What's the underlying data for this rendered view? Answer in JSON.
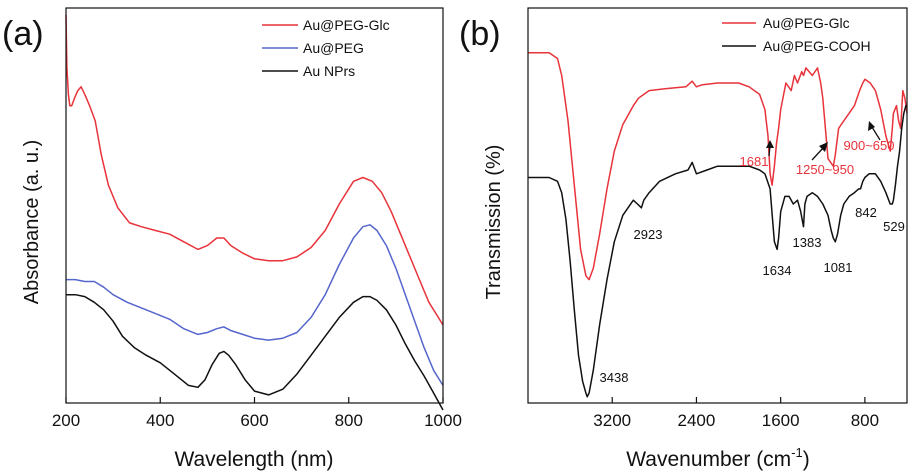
{
  "chart_data": [
    {
      "type": "line",
      "panel_label": "(a)",
      "xlabel": "Wavelength (nm)",
      "ylabel": "Absorbance (a. u.)",
      "xlim": [
        200,
        1000
      ],
      "ylim": [
        0,
        1
      ],
      "xticks": [
        200,
        400,
        600,
        800,
        1000
      ],
      "yticks_shown": false,
      "grid": false,
      "legend": "top-right",
      "series": [
        {
          "name": "Au@PEG-Glc",
          "color": "#e8333a",
          "x": [
            200,
            202,
            205,
            208,
            212,
            218,
            225,
            232,
            240,
            250,
            262,
            275,
            290,
            310,
            335,
            360,
            390,
            420,
            450,
            480,
            500,
            520,
            535,
            550,
            575,
            600,
            630,
            660,
            690,
            720,
            750,
            780,
            810,
            830,
            850,
            870,
            890,
            910,
            930,
            950,
            970,
            990,
            1000
          ],
          "y": [
            1.0,
            0.86,
            0.79,
            0.76,
            0.76,
            0.78,
            0.8,
            0.81,
            0.79,
            0.76,
            0.72,
            0.63,
            0.55,
            0.49,
            0.45,
            0.44,
            0.43,
            0.42,
            0.4,
            0.38,
            0.39,
            0.41,
            0.41,
            0.39,
            0.37,
            0.355,
            0.35,
            0.35,
            0.36,
            0.385,
            0.43,
            0.5,
            0.56,
            0.57,
            0.56,
            0.53,
            0.48,
            0.42,
            0.36,
            0.3,
            0.24,
            0.2,
            0.18
          ]
        },
        {
          "name": "Au@PEG",
          "color": "#5566cc",
          "x": [
            200,
            220,
            240,
            260,
            280,
            300,
            330,
            360,
            390,
            420,
            450,
            480,
            500,
            520,
            535,
            550,
            575,
            600,
            630,
            660,
            690,
            720,
            750,
            780,
            810,
            830,
            845,
            860,
            880,
            900,
            920,
            940,
            960,
            980,
            1000
          ],
          "y": [
            0.3,
            0.3,
            0.295,
            0.295,
            0.28,
            0.26,
            0.24,
            0.225,
            0.21,
            0.195,
            0.17,
            0.155,
            0.16,
            0.17,
            0.175,
            0.165,
            0.155,
            0.145,
            0.14,
            0.145,
            0.16,
            0.2,
            0.26,
            0.34,
            0.41,
            0.44,
            0.445,
            0.43,
            0.39,
            0.33,
            0.26,
            0.19,
            0.12,
            0.06,
            0.02
          ]
        },
        {
          "name": "Au NPrs",
          "color": "#111111",
          "x": [
            200,
            220,
            240,
            260,
            280,
            300,
            320,
            345,
            370,
            400,
            430,
            460,
            480,
            495,
            510,
            525,
            535,
            545,
            560,
            580,
            600,
            630,
            660,
            690,
            720,
            750,
            780,
            810,
            830,
            845,
            860,
            880,
            900,
            920,
            940,
            960,
            980,
            1000
          ],
          "y": [
            0.26,
            0.26,
            0.255,
            0.24,
            0.22,
            0.19,
            0.15,
            0.12,
            0.1,
            0.08,
            0.05,
            0.02,
            0.015,
            0.035,
            0.075,
            0.105,
            0.11,
            0.1,
            0.075,
            0.035,
            0.005,
            -0.005,
            0.01,
            0.05,
            0.1,
            0.15,
            0.2,
            0.24,
            0.255,
            0.255,
            0.245,
            0.22,
            0.18,
            0.13,
            0.085,
            0.045,
            0.0,
            -0.045
          ]
        }
      ]
    },
    {
      "type": "line",
      "panel_label": "(b)",
      "xlabel": "Wavenumber (cm",
      "xlabel_sup": "-1",
      "xlabel_close": ")",
      "ylabel": "Transmission (%)",
      "xlim": [
        4000,
        400
      ],
      "ylim": [
        0,
        1
      ],
      "x_reversed": true,
      "xticks": [
        3200,
        2400,
        1600,
        800
      ],
      "yticks_shown": false,
      "grid": false,
      "legend": "top-right",
      "annotations": [
        {
          "text": "1681",
          "x": 1681,
          "color": "#e8333a"
        },
        {
          "text": "1250~950",
          "x": 1100,
          "color": "#e8333a"
        },
        {
          "text": "900~650",
          "x": 775,
          "color": "#e8333a"
        },
        {
          "text": "2923",
          "x": 2923,
          "color": "#111111"
        },
        {
          "text": "1634",
          "x": 1634,
          "color": "#111111"
        },
        {
          "text": "1383",
          "x": 1383,
          "color": "#111111"
        },
        {
          "text": "1081",
          "x": 1081,
          "color": "#111111"
        },
        {
          "text": "842",
          "x": 842,
          "color": "#111111"
        },
        {
          "text": "529",
          "x": 529,
          "color": "#111111"
        },
        {
          "text": "3438",
          "x": 3438,
          "color": "#111111"
        }
      ],
      "series": [
        {
          "name": "Au@PEG-Glc",
          "color": "#e8333a",
          "x": [
            4000,
            3900,
            3800,
            3720,
            3680,
            3620,
            3560,
            3500,
            3450,
            3420,
            3380,
            3320,
            3250,
            3180,
            3100,
            3000,
            2950,
            2900,
            2850,
            2700,
            2500,
            2440,
            2400,
            2350,
            2200,
            2000,
            1900,
            1800,
            1750,
            1720,
            1700,
            1681,
            1660,
            1640,
            1620,
            1600,
            1550,
            1500,
            1470,
            1440,
            1400,
            1383,
            1360,
            1300,
            1250,
            1220,
            1200,
            1150,
            1100,
            1081,
            1050,
            1000,
            950,
            900,
            850,
            820,
            800,
            750,
            700,
            650,
            600,
            560,
            540,
            529,
            500,
            480,
            460,
            440,
            420,
            400
          ],
          "y": [
            0.9,
            0.9,
            0.9,
            0.885,
            0.84,
            0.72,
            0.55,
            0.38,
            0.31,
            0.3,
            0.33,
            0.42,
            0.54,
            0.64,
            0.71,
            0.76,
            0.78,
            0.79,
            0.8,
            0.805,
            0.81,
            0.825,
            0.81,
            0.815,
            0.82,
            0.82,
            0.81,
            0.79,
            0.75,
            0.68,
            0.58,
            0.55,
            0.6,
            0.66,
            0.7,
            0.75,
            0.82,
            0.8,
            0.84,
            0.82,
            0.85,
            0.84,
            0.86,
            0.84,
            0.86,
            0.82,
            0.78,
            0.62,
            0.6,
            0.63,
            0.7,
            0.72,
            0.74,
            0.76,
            0.8,
            0.82,
            0.83,
            0.82,
            0.8,
            0.75,
            0.68,
            0.64,
            0.7,
            0.74,
            0.76,
            0.72,
            0.7,
            0.8,
            0.78,
            0.74
          ]
        },
        {
          "name": "Au@PEG-COOH",
          "color": "#111111",
          "x": [
            4000,
            3900,
            3800,
            3720,
            3680,
            3640,
            3600,
            3560,
            3520,
            3480,
            3450,
            3438,
            3420,
            3380,
            3320,
            3250,
            3180,
            3100,
            3000,
            2960,
            2923,
            2900,
            2850,
            2750,
            2600,
            2480,
            2440,
            2400,
            2300,
            2200,
            2100,
            2000,
            1900,
            1800,
            1750,
            1700,
            1680,
            1660,
            1634,
            1620,
            1600,
            1560,
            1520,
            1480,
            1440,
            1410,
            1383,
            1370,
            1350,
            1300,
            1250,
            1200,
            1150,
            1120,
            1100,
            1081,
            1060,
            1030,
            1000,
            950,
            900,
            860,
            842,
            820,
            800,
            760,
            700,
            650,
            600,
            560,
            540,
            529,
            510,
            490,
            470,
            450,
            430,
            410,
            400
          ],
          "y": [
            0.57,
            0.57,
            0.57,
            0.56,
            0.53,
            0.46,
            0.35,
            0.22,
            0.1,
            0.03,
            0.0,
            -0.01,
            0.0,
            0.06,
            0.18,
            0.3,
            0.4,
            0.47,
            0.51,
            0.5,
            0.49,
            0.51,
            0.53,
            0.56,
            0.58,
            0.59,
            0.61,
            0.58,
            0.59,
            0.6,
            0.6,
            0.6,
            0.6,
            0.59,
            0.58,
            0.54,
            0.47,
            0.4,
            0.38,
            0.41,
            0.48,
            0.52,
            0.52,
            0.5,
            0.51,
            0.48,
            0.44,
            0.5,
            0.52,
            0.53,
            0.52,
            0.5,
            0.47,
            0.43,
            0.41,
            0.4,
            0.42,
            0.47,
            0.5,
            0.52,
            0.53,
            0.54,
            0.54,
            0.56,
            0.57,
            0.58,
            0.58,
            0.56,
            0.53,
            0.5,
            0.5,
            0.51,
            0.55,
            0.6,
            0.64,
            0.7,
            0.74,
            0.76,
            0.76
          ]
        }
      ]
    }
  ]
}
